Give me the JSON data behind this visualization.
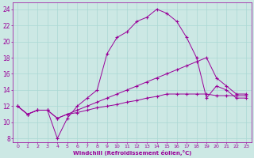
{
  "xlabel": "Windchill (Refroidissement éolien,°C)",
  "bg_color": "#cce8e4",
  "line_color": "#990099",
  "grid_color": "#aad8d4",
  "xlim": [
    -0.5,
    23.5
  ],
  "ylim": [
    7.5,
    24.8
  ],
  "yticks": [
    8,
    10,
    12,
    14,
    16,
    18,
    20,
    22,
    24
  ],
  "xticks": [
    0,
    1,
    2,
    3,
    4,
    5,
    6,
    7,
    8,
    9,
    10,
    11,
    12,
    13,
    14,
    15,
    16,
    17,
    18,
    19,
    20,
    21,
    22,
    23
  ],
  "curve1_x": [
    0,
    1,
    2,
    3,
    4,
    5,
    6,
    7,
    8,
    9,
    10,
    11,
    12,
    13,
    14,
    15,
    16,
    17,
    18,
    19,
    20,
    21,
    22,
    23
  ],
  "curve1_y": [
    12,
    11,
    11.5,
    11.5,
    8,
    10.5,
    12,
    13,
    14,
    18.5,
    20.5,
    21.2,
    22.5,
    23.0,
    24.0,
    23.5,
    22.5,
    20.5,
    18,
    13,
    14.5,
    14,
    13,
    13
  ],
  "curve2_x": [
    0,
    1,
    2,
    3,
    4,
    5,
    6,
    7,
    8,
    9,
    10,
    11,
    12,
    13,
    14,
    15,
    16,
    17,
    18,
    19,
    20,
    21,
    22,
    23
  ],
  "curve2_y": [
    12,
    11,
    11.5,
    11.5,
    10.5,
    11,
    11.5,
    12,
    12.5,
    13,
    13.5,
    14,
    14.5,
    15,
    15.5,
    16,
    16.5,
    17,
    17.5,
    18,
    15.5,
    14.5,
    13.5,
    13.5
  ],
  "curve3_x": [
    0,
    1,
    2,
    3,
    4,
    5,
    6,
    7,
    8,
    9,
    10,
    11,
    12,
    13,
    14,
    15,
    16,
    17,
    18,
    19,
    20,
    21,
    22,
    23
  ],
  "curve3_y": [
    12,
    11,
    11.5,
    11.5,
    10.5,
    11,
    11.2,
    11.5,
    11.8,
    12,
    12.2,
    12.5,
    12.7,
    13,
    13.2,
    13.5,
    13.5,
    13.5,
    13.5,
    13.5,
    13.3,
    13.3,
    13.3,
    13.3
  ]
}
